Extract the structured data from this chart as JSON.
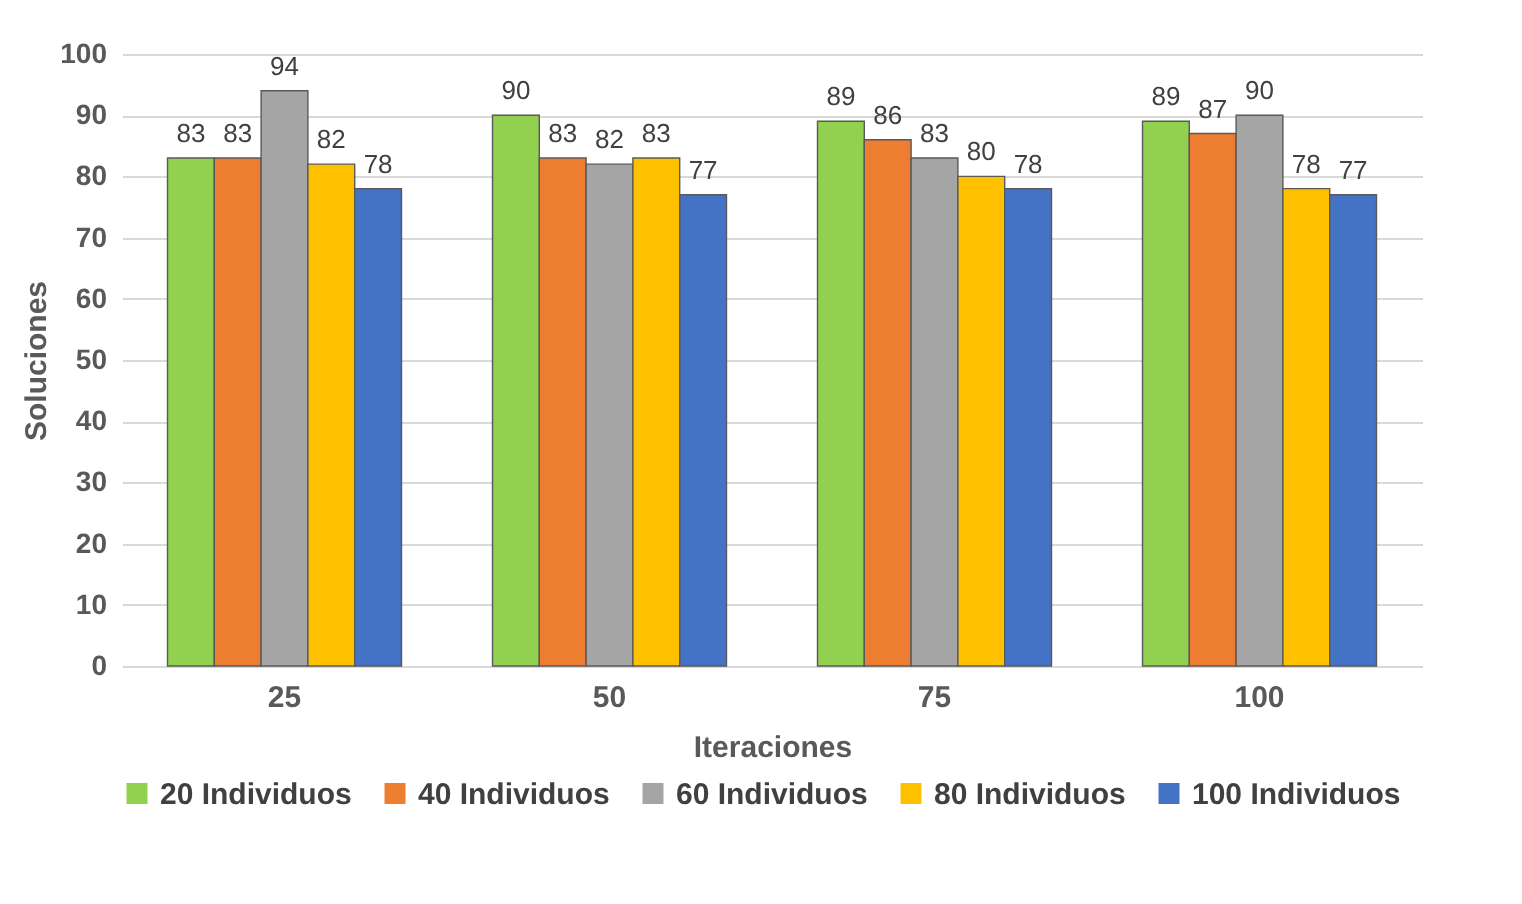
{
  "chart_data": {
    "type": "bar",
    "xlabel": "Iteraciones",
    "ylabel": "Soluciones",
    "categories": [
      "25",
      "50",
      "75",
      "100"
    ],
    "series": [
      {
        "name": "20 Individuos",
        "color": "#92d050",
        "values": [
          83,
          90,
          89,
          89
        ]
      },
      {
        "name": "40 Individuos",
        "color": "#ed7d31",
        "values": [
          83,
          83,
          86,
          87
        ]
      },
      {
        "name": "60 Individuos",
        "color": "#a5a5a5",
        "values": [
          94,
          82,
          83,
          90
        ]
      },
      {
        "name": "80 Individuos",
        "color": "#ffc000",
        "values": [
          82,
          83,
          80,
          78
        ]
      },
      {
        "name": "100 Individuos",
        "color": "#4472c4",
        "values": [
          78,
          77,
          78,
          77
        ]
      }
    ],
    "ylim": [
      0,
      100
    ],
    "yticks": [
      0,
      10,
      20,
      30,
      40,
      50,
      60,
      70,
      80,
      90,
      100
    ],
    "grid": "y",
    "legend": "bottom",
    "data_labels": true
  }
}
